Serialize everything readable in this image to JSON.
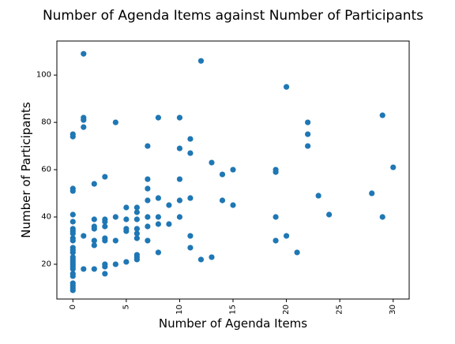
{
  "chart_data": {
    "type": "scatter",
    "title": "Number of Agenda Items against Number of Participants",
    "xlabel": "Number of Agenda Items",
    "ylabel": "Number of Participants",
    "xlim": [
      -1.5,
      31.5
    ],
    "ylim": [
      5.3,
      114.4
    ],
    "x_ticks": [
      0,
      5,
      10,
      15,
      20,
      25,
      30
    ],
    "y_ticks": [
      20,
      40,
      60,
      80,
      100
    ],
    "x_tick_rotation": "vertical",
    "grid": false,
    "legend": "none",
    "marker_color": "#1f77b4",
    "points": [
      [
        0,
        75
      ],
      [
        0,
        74
      ],
      [
        0,
        52
      ],
      [
        0,
        51
      ],
      [
        0,
        41
      ],
      [
        0,
        38
      ],
      [
        0,
        35
      ],
      [
        0,
        34
      ],
      [
        0,
        33
      ],
      [
        0,
        31
      ],
      [
        0,
        30
      ],
      [
        0,
        27
      ],
      [
        0,
        26
      ],
      [
        0,
        25
      ],
      [
        0,
        23
      ],
      [
        0,
        22
      ],
      [
        0,
        21
      ],
      [
        0,
        20
      ],
      [
        0,
        19
      ],
      [
        0,
        18
      ],
      [
        0,
        16
      ],
      [
        0,
        15
      ],
      [
        0,
        12
      ],
      [
        0,
        11
      ],
      [
        0,
        10
      ],
      [
        0,
        9
      ],
      [
        1,
        109
      ],
      [
        1,
        82
      ],
      [
        1,
        81
      ],
      [
        1,
        78
      ],
      [
        1,
        32
      ],
      [
        1,
        18
      ],
      [
        2,
        54
      ],
      [
        2,
        39
      ],
      [
        2,
        36
      ],
      [
        2,
        35
      ],
      [
        2,
        30
      ],
      [
        2,
        28
      ],
      [
        2,
        18
      ],
      [
        3,
        57
      ],
      [
        3,
        39
      ],
      [
        3,
        38
      ],
      [
        3,
        36
      ],
      [
        3,
        31
      ],
      [
        3,
        30
      ],
      [
        3,
        20
      ],
      [
        3,
        19
      ],
      [
        3,
        16
      ],
      [
        4,
        80
      ],
      [
        4,
        40
      ],
      [
        4,
        30
      ],
      [
        4,
        20
      ],
      [
        5,
        44
      ],
      [
        5,
        39
      ],
      [
        5,
        35
      ],
      [
        5,
        34
      ],
      [
        5,
        21
      ],
      [
        6,
        44
      ],
      [
        6,
        42
      ],
      [
        6,
        39
      ],
      [
        6,
        35
      ],
      [
        6,
        33
      ],
      [
        6,
        31
      ],
      [
        6,
        24
      ],
      [
        6,
        23
      ],
      [
        6,
        22
      ],
      [
        7,
        70
      ],
      [
        7,
        56
      ],
      [
        7,
        52
      ],
      [
        7,
        47
      ],
      [
        7,
        40
      ],
      [
        7,
        36
      ],
      [
        7,
        30
      ],
      [
        8,
        82
      ],
      [
        8,
        48
      ],
      [
        8,
        40
      ],
      [
        8,
        37
      ],
      [
        8,
        25
      ],
      [
        9,
        45
      ],
      [
        9,
        37
      ],
      [
        10,
        82
      ],
      [
        10,
        69
      ],
      [
        10,
        56
      ],
      [
        10,
        47
      ],
      [
        10,
        40
      ],
      [
        11,
        73
      ],
      [
        11,
        67
      ],
      [
        11,
        48
      ],
      [
        11,
        32
      ],
      [
        11,
        27
      ],
      [
        12,
        106
      ],
      [
        12,
        22
      ],
      [
        13,
        63
      ],
      [
        13,
        23
      ],
      [
        14,
        58
      ],
      [
        14,
        47
      ],
      [
        15,
        60
      ],
      [
        15,
        45
      ],
      [
        19,
        60
      ],
      [
        19,
        59
      ],
      [
        19,
        40
      ],
      [
        19,
        30
      ],
      [
        20,
        95
      ],
      [
        20,
        32
      ],
      [
        21,
        25
      ],
      [
        22,
        80
      ],
      [
        22,
        75
      ],
      [
        22,
        70
      ],
      [
        23,
        49
      ],
      [
        24,
        41
      ],
      [
        28,
        50
      ],
      [
        29,
        83
      ],
      [
        29,
        40
      ],
      [
        30,
        61
      ]
    ]
  }
}
